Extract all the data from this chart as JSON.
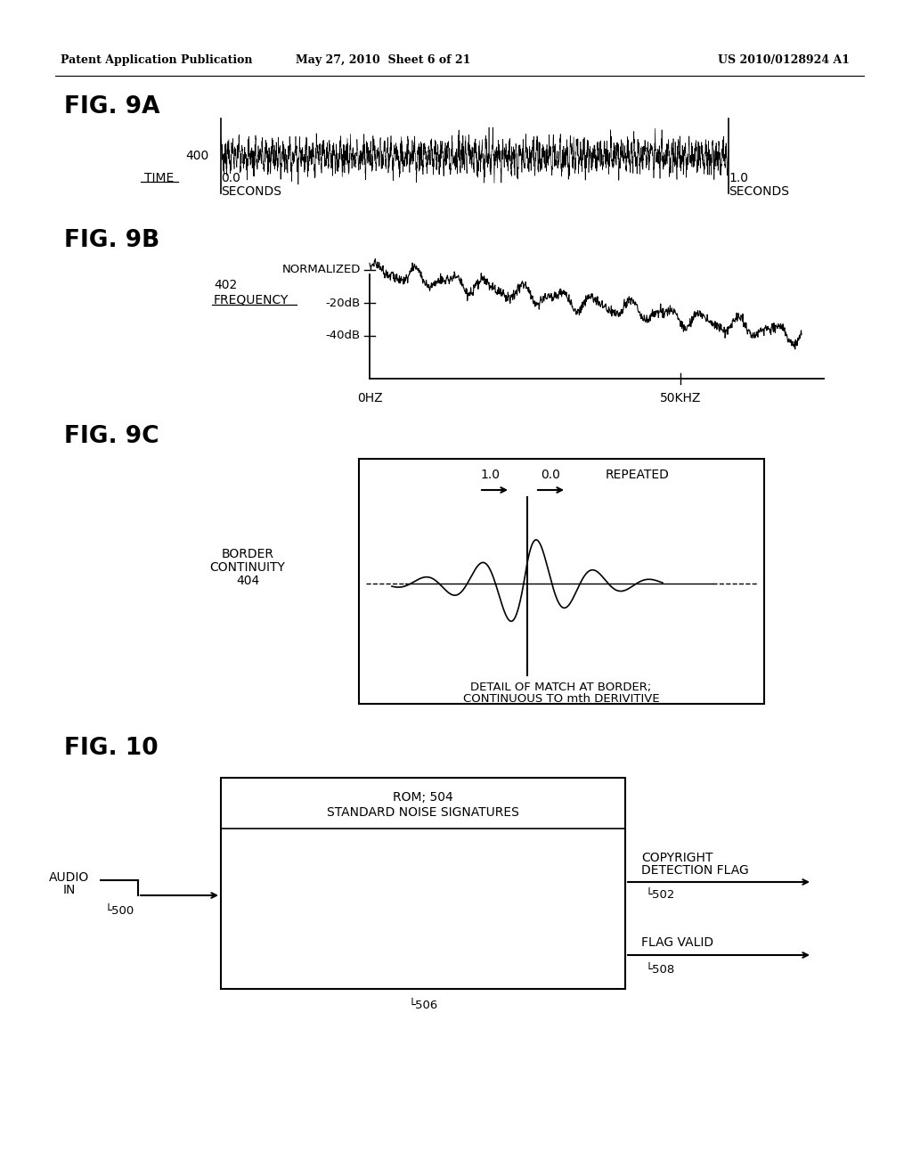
{
  "bg_color": "#ffffff",
  "header_left": "Patent Application Publication",
  "header_mid": "May 27, 2010  Sheet 6 of 21",
  "header_right": "US 2010/0128924 A1",
  "fig9a_label": "FIG. 9A",
  "fig9b_label": "FIG. 9B",
  "fig9c_label": "FIG. 9C",
  "fig10_label": "FIG. 10"
}
